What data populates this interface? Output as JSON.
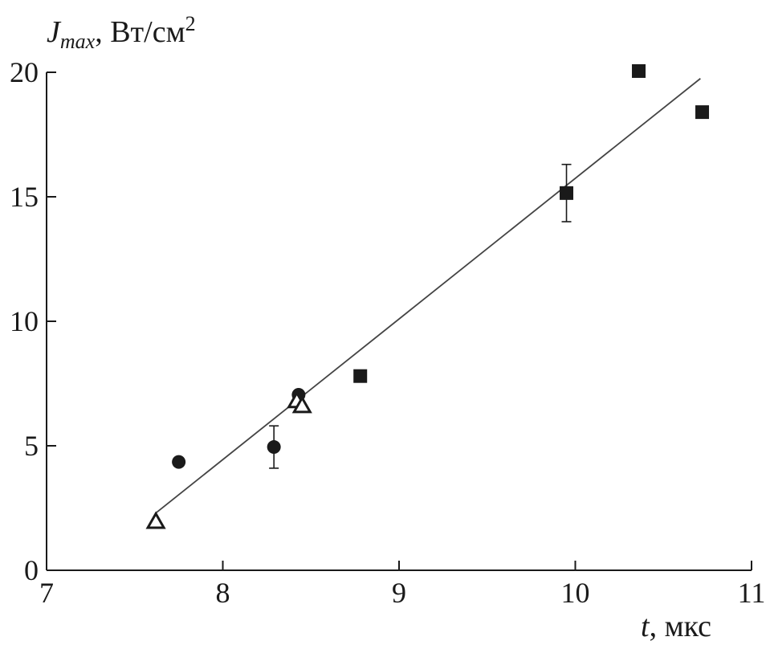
{
  "chart_data": {
    "type": "scatter",
    "ylabel": {
      "var": "J",
      "sub": "max",
      "unit": ", Вт/см",
      "sup": "2"
    },
    "xlabel": {
      "var": "t",
      "unit": ", мкс"
    },
    "xlim": [
      7,
      11
    ],
    "ylim": [
      0,
      20
    ],
    "xticks": [
      7,
      8,
      9,
      10,
      11
    ],
    "yticks": [
      0,
      5,
      10,
      15,
      20
    ],
    "grid": false,
    "series": [
      {
        "marker": "circle-filled",
        "points": [
          {
            "x": 7.75,
            "y": 4.35
          },
          {
            "x": 8.29,
            "y": 4.95,
            "yerr": [
              4.1,
              5.8
            ]
          },
          {
            "x": 8.43,
            "y": 7.05
          }
        ]
      },
      {
        "marker": "triangle-open",
        "points": [
          {
            "x": 7.62,
            "y": 1.95
          },
          {
            "x": 8.42,
            "y": 6.8
          },
          {
            "x": 8.45,
            "y": 6.6
          }
        ]
      },
      {
        "marker": "square-filled",
        "points": [
          {
            "x": 8.78,
            "y": 7.8
          },
          {
            "x": 9.95,
            "y": 15.15,
            "yerr": [
              14.0,
              16.3
            ]
          },
          {
            "x": 10.36,
            "y": 20.05
          },
          {
            "x": 10.72,
            "y": 18.4
          }
        ]
      }
    ],
    "fit_line": {
      "x": [
        7.62,
        10.71
      ],
      "y": [
        2.3,
        19.75
      ]
    },
    "colors": {
      "axis": "#1a1a1a",
      "markers": "#1a1a1a",
      "fit": "#444444"
    }
  }
}
